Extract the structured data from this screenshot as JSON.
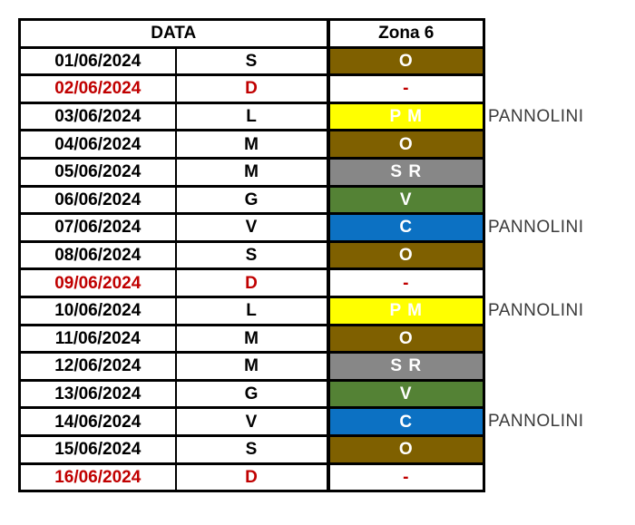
{
  "table": {
    "header": {
      "data_label": "DATA",
      "zone_label": "Zona 6"
    },
    "rows": [
      {
        "date": "01/06/2024",
        "day": "S",
        "code": "O",
        "color_key": "brown",
        "holiday": false,
        "note": ""
      },
      {
        "date": "02/06/2024",
        "day": "D",
        "code": "-",
        "color_key": "none",
        "holiday": true,
        "note": ""
      },
      {
        "date": "03/06/2024",
        "day": "L",
        "code": "P M",
        "color_key": "yellow",
        "holiday": false,
        "note": "PANNOLINI"
      },
      {
        "date": "04/06/2024",
        "day": "M",
        "code": "O",
        "color_key": "brown",
        "holiday": false,
        "note": ""
      },
      {
        "date": "05/06/2024",
        "day": "M",
        "code": "S R",
        "color_key": "gray",
        "holiday": false,
        "note": ""
      },
      {
        "date": "06/06/2024",
        "day": "G",
        "code": "V",
        "color_key": "green",
        "holiday": false,
        "note": ""
      },
      {
        "date": "07/06/2024",
        "day": "V",
        "code": "C",
        "color_key": "blue",
        "holiday": false,
        "note": "PANNOLINI"
      },
      {
        "date": "08/06/2024",
        "day": "S",
        "code": "O",
        "color_key": "brown",
        "holiday": false,
        "note": ""
      },
      {
        "date": "09/06/2024",
        "day": "D",
        "code": "-",
        "color_key": "none",
        "holiday": true,
        "note": ""
      },
      {
        "date": "10/06/2024",
        "day": "L",
        "code": "P M",
        "color_key": "yellow",
        "holiday": false,
        "note": "PANNOLINI"
      },
      {
        "date": "11/06/2024",
        "day": "M",
        "code": "O",
        "color_key": "brown",
        "holiday": false,
        "note": ""
      },
      {
        "date": "12/06/2024",
        "day": "M",
        "code": "S R",
        "color_key": "gray",
        "holiday": false,
        "note": ""
      },
      {
        "date": "13/06/2024",
        "day": "G",
        "code": "V",
        "color_key": "green",
        "holiday": false,
        "note": ""
      },
      {
        "date": "14/06/2024",
        "day": "V",
        "code": "C",
        "color_key": "blue",
        "holiday": false,
        "note": "PANNOLINI"
      },
      {
        "date": "15/06/2024",
        "day": "S",
        "code": "O",
        "color_key": "brown",
        "holiday": false,
        "note": ""
      },
      {
        "date": "16/06/2024",
        "day": "D",
        "code": "-",
        "color_key": "none",
        "holiday": true,
        "note": ""
      }
    ],
    "colors": {
      "brown": "#7F6000",
      "yellow": "#FFFF00",
      "gray": "#878787",
      "green": "#548235",
      "blue": "#0C71C3",
      "none": "#FFFFFF",
      "code_text": "#FFFFFF",
      "yellow_code_text": "#FFFFFF",
      "holiday_text": "#C00000",
      "note_text": "#3A3A3A",
      "border": "#000000"
    }
  }
}
